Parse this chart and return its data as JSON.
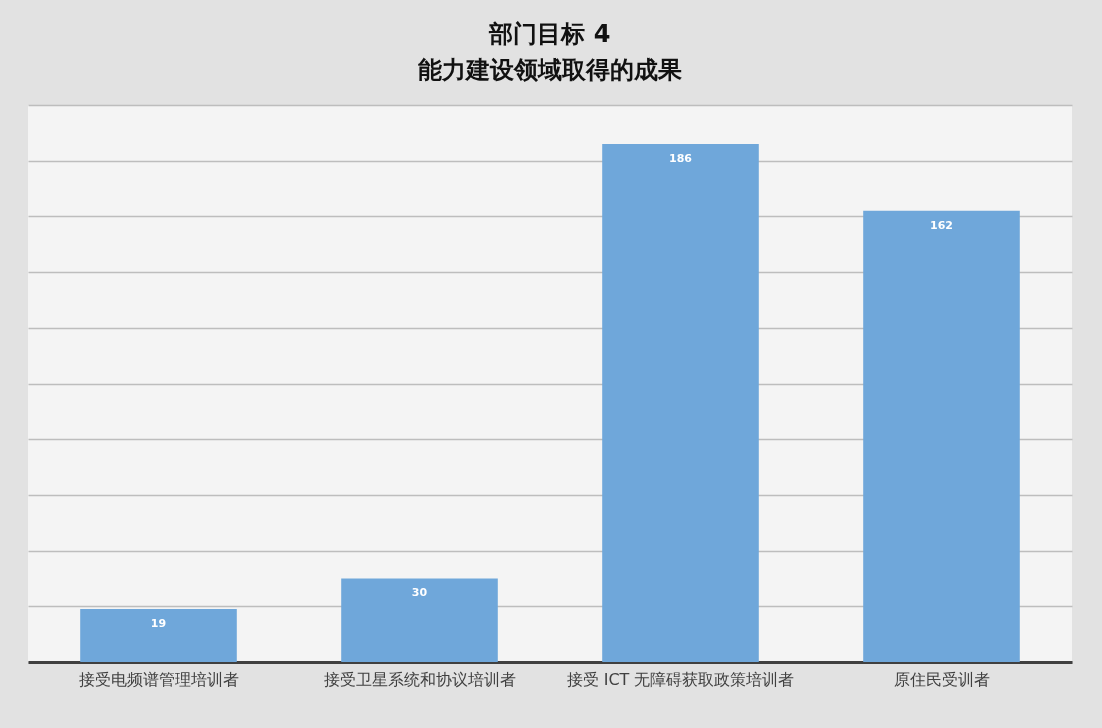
{
  "chart_data": {
    "type": "bar",
    "title": "部门目标 4\n能力建设领域取得的成果",
    "categories": [
      "接受电频谱管理培训者",
      "接受卫星系统和协议培训者",
      "接受 ICT 无障碍获取政策培训者",
      "原住民受训者"
    ],
    "values": [
      19,
      30,
      186,
      162
    ],
    "color": "#6fa7da",
    "ylim": [
      0,
      200
    ],
    "yticks": [
      {
        "value": 0,
        "label": null
      },
      {
        "value": 20,
        "label": null
      },
      {
        "value": 40,
        "label": null
      },
      {
        "value": 60,
        "label": null
      },
      {
        "value": 80,
        "label": null
      },
      {
        "value": 100,
        "label": null
      },
      {
        "value": 120,
        "label": null
      },
      {
        "value": 140,
        "label": null
      },
      {
        "value": 160,
        "label": null
      },
      {
        "value": 180,
        "label": null
      },
      {
        "value": 200,
        "label": null
      }
    ],
    "tick_labels": "x",
    "grid": "y",
    "data_labels": true
  }
}
